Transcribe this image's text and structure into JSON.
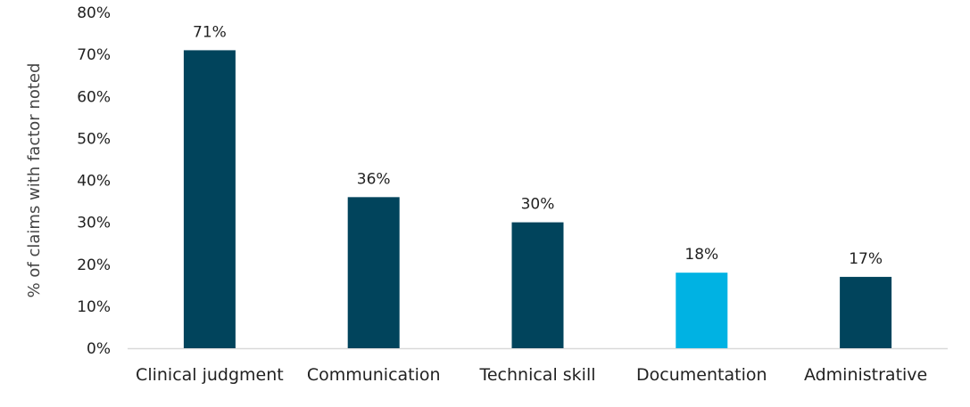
{
  "chart_data": {
    "type": "bar",
    "categories": [
      "Clinical judgment",
      "Communication",
      "Technical skill",
      "Documentation",
      "Administrative"
    ],
    "values": [
      71,
      36,
      30,
      18,
      17
    ],
    "data_labels": [
      "71%",
      "36%",
      "30%",
      "18%",
      "17%"
    ],
    "ylabel": "% of claims with factor noted",
    "xlabel": "",
    "ylim": [
      0,
      80
    ],
    "yticks": [
      0,
      10,
      20,
      30,
      40,
      50,
      60,
      70,
      80
    ],
    "ytick_labels": [
      "0%",
      "10%",
      "20%",
      "30%",
      "40%",
      "50%",
      "60%",
      "70%",
      "80%"
    ],
    "grid": false,
    "bar_colors": [
      "#01445c",
      "#01445c",
      "#01445c",
      "#00b2e3",
      "#01445c"
    ],
    "axis_color": "#d9d9d9"
  }
}
